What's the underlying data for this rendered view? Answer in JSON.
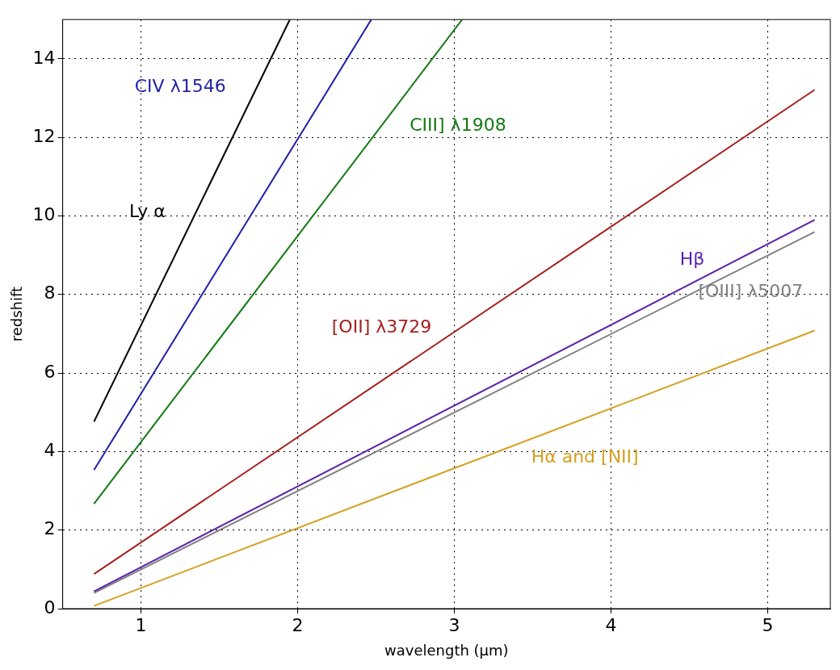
{
  "chart_data": {
    "type": "line",
    "xlabel": "wavelength (μm)",
    "ylabel": "redshift",
    "xlim": [
      0.5,
      5.4
    ],
    "ylim": [
      0,
      15
    ],
    "xticks": [
      1,
      2,
      3,
      4,
      5
    ],
    "yticks": [
      0,
      2,
      4,
      6,
      8,
      10,
      12,
      14
    ],
    "grid": true,
    "legend": false,
    "marker": "none",
    "line_style": "solid",
    "series": [
      {
        "name": "Ly α",
        "color": "#000000",
        "x": [
          0.7,
          1.95
        ],
        "values": [
          4.76,
          15
        ]
      },
      {
        "name": "CIV λ1546",
        "color": "#1f1fa8",
        "x": [
          0.7,
          2.47
        ],
        "values": [
          3.53,
          15
        ]
      },
      {
        "name": "CIII] λ1908",
        "color": "#127a12",
        "x": [
          0.7,
          3.05
        ],
        "values": [
          2.67,
          15
        ]
      },
      {
        "name": "[OII] λ3729",
        "color": "#a52020",
        "x": [
          0.7,
          5.3
        ],
        "values": [
          0.88,
          13.21
        ]
      },
      {
        "name": "Hβ",
        "color": "#5a1faa",
        "x": [
          0.7,
          5.3
        ],
        "values": [
          0.44,
          9.9
        ]
      },
      {
        "name": "[OIII] λ5007",
        "color": "#808080",
        "x": [
          0.7,
          5.3
        ],
        "values": [
          0.4,
          9.59
        ]
      },
      {
        "name": "Hα and [NII]",
        "color": "#d4a020",
        "x": [
          0.7,
          5.3
        ],
        "values": [
          0.07,
          7.08
        ]
      }
    ]
  }
}
